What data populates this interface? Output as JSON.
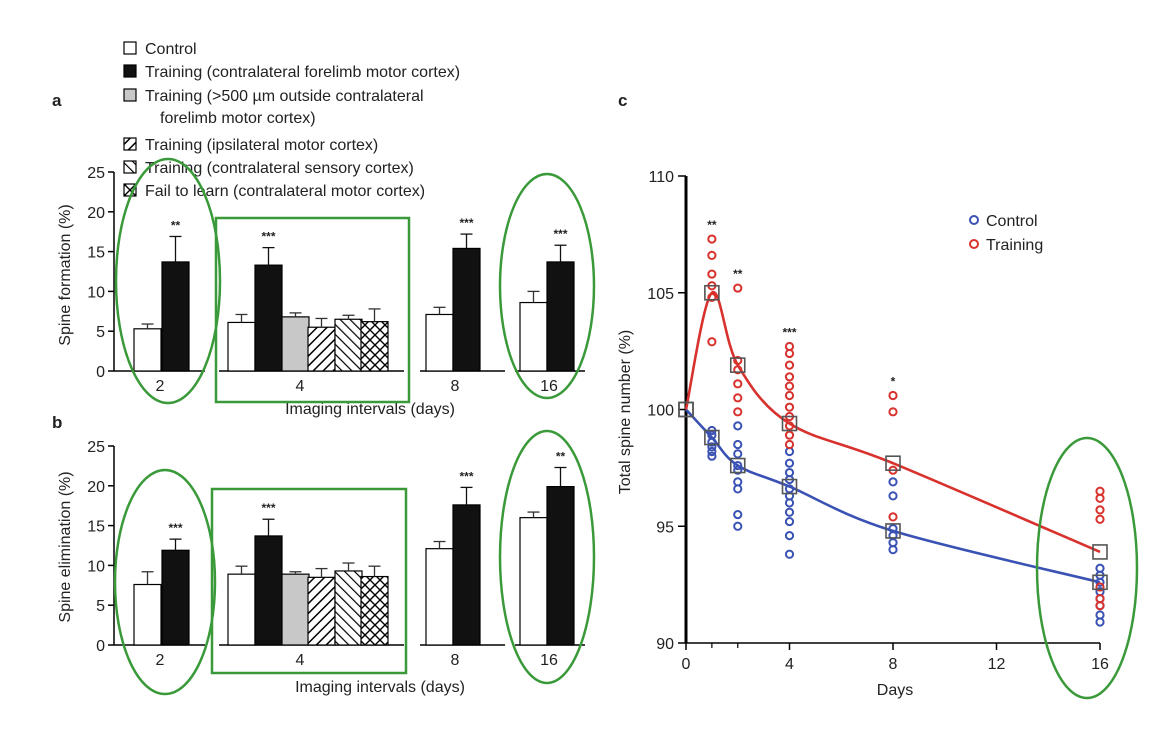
{
  "legend": {
    "items": [
      {
        "label": "Control",
        "pattern": "control"
      },
      {
        "label": "Training (contralateral forelimb motor cortex)",
        "pattern": "training"
      },
      {
        "label": "Training (>500 µm outside contralateral",
        "label2": "forelimb motor cortex)",
        "pattern": "outside"
      },
      {
        "label": "Training (ipsilateral motor cortex)",
        "pattern": "ipsi"
      },
      {
        "label": "Training (contralateral sensory cortex)",
        "pattern": "sensory"
      },
      {
        "label": "Fail to learn (contralateral motor cortex)",
        "pattern": "fail"
      }
    ]
  },
  "chart_data": [
    {
      "panel": "a",
      "type": "bar",
      "xlabel": "Imaging intervals (days)",
      "ylabel": "Spine formation (%)",
      "ylim": [
        0,
        25
      ],
      "yticks": [
        "0",
        "5",
        "10",
        "15",
        "20",
        "25"
      ],
      "groups": [
        {
          "label": "2",
          "bars": [
            {
              "series": "Control",
              "value": 5.3,
              "error": 0.6
            },
            {
              "series": "Training (contralateral forelimb motor cortex)",
              "value": 13.7,
              "error": 3.2,
              "sig": "**"
            }
          ]
        },
        {
          "label": "4",
          "bars": [
            {
              "series": "Control",
              "value": 6.1,
              "error": 1.0
            },
            {
              "series": "Training (contralateral forelimb motor cortex)",
              "value": 13.3,
              "error": 2.2,
              "sig": "***"
            },
            {
              "series": "Training (>500 µm outside contralateral forelimb motor cortex)",
              "value": 6.8,
              "error": 0.5
            },
            {
              "series": "Training (ipsilateral motor cortex)",
              "value": 5.5,
              "error": 1.1
            },
            {
              "series": "Training (contralateral sensory cortex)",
              "value": 6.5,
              "error": 0.5
            },
            {
              "series": "Fail to learn (contralateral motor cortex)",
              "value": 6.2,
              "error": 1.6
            }
          ]
        },
        {
          "label": "8",
          "bars": [
            {
              "series": "Control",
              "value": 7.1,
              "error": 0.9
            },
            {
              "series": "Training (contralateral forelimb motor cortex)",
              "value": 15.4,
              "error": 1.8,
              "sig": "***"
            }
          ]
        },
        {
          "label": "16",
          "bars": [
            {
              "series": "Control",
              "value": 8.6,
              "error": 1.4
            },
            {
              "series": "Training (contralateral forelimb motor cortex)",
              "value": 13.7,
              "error": 2.1,
              "sig": "***"
            }
          ]
        }
      ]
    },
    {
      "panel": "b",
      "type": "bar",
      "xlabel": "Imaging intervals (days)",
      "ylabel": "Spine elimination (%)",
      "ylim": [
        0,
        25
      ],
      "yticks": [
        "0",
        "5",
        "10",
        "15",
        "20",
        "25"
      ],
      "groups": [
        {
          "label": "2",
          "bars": [
            {
              "series": "Control",
              "value": 7.6,
              "error": 1.6
            },
            {
              "series": "Training (contralateral forelimb motor cortex)",
              "value": 11.9,
              "error": 1.4,
              "sig": "***"
            }
          ]
        },
        {
          "label": "4",
          "bars": [
            {
              "series": "Control",
              "value": 8.9,
              "error": 1.0
            },
            {
              "series": "Training (contralateral forelimb motor cortex)",
              "value": 13.7,
              "error": 2.1,
              "sig": "***"
            },
            {
              "series": "Training (>500 µm outside contralateral forelimb motor cortex)",
              "value": 8.9,
              "error": 0.3
            },
            {
              "series": "Training (ipsilateral motor cortex)",
              "value": 8.5,
              "error": 1.1
            },
            {
              "series": "Training (contralateral sensory cortex)",
              "value": 9.3,
              "error": 1.0
            },
            {
              "series": "Fail to learn (contralateral motor cortex)",
              "value": 8.6,
              "error": 1.3
            }
          ]
        },
        {
          "label": "8",
          "bars": [
            {
              "series": "Control",
              "value": 12.1,
              "error": 0.9
            },
            {
              "series": "Training (contralateral forelimb motor cortex)",
              "value": 17.6,
              "error": 2.2,
              "sig": "***"
            }
          ]
        },
        {
          "label": "16",
          "bars": [
            {
              "series": "Control",
              "value": 16.0,
              "error": 0.7
            },
            {
              "series": "Training (contralateral forelimb motor cortex)",
              "value": 19.9,
              "error": 2.4,
              "sig": "**"
            }
          ]
        }
      ]
    },
    {
      "panel": "c",
      "type": "scatter",
      "xlabel": "Days",
      "ylabel": "Total spine number (%)",
      "xlim": [
        0,
        16
      ],
      "ylim": [
        90,
        110
      ],
      "xticks": [
        "0",
        "4",
        "8",
        "12",
        "16"
      ],
      "yticks": [
        "90",
        "95",
        "100",
        "105",
        "110"
      ],
      "legend_position": "top-right",
      "series": [
        {
          "name": "Control",
          "color": "#3a52b4",
          "means": [
            [
              0,
              100
            ],
            [
              1,
              98.8
            ],
            [
              2,
              97.6
            ],
            [
              4,
              96.7
            ],
            [
              8,
              94.8
            ],
            [
              16,
              92.6
            ]
          ],
          "points": [
            [
              1,
              99.1
            ],
            [
              1,
              98.9
            ],
            [
              1,
              98.6
            ],
            [
              1,
              98.4
            ],
            [
              1,
              98.2
            ],
            [
              1,
              98.0
            ],
            [
              2,
              99.3
            ],
            [
              2,
              98.5
            ],
            [
              2,
              98.1
            ],
            [
              2,
              97.6
            ],
            [
              2,
              97.4
            ],
            [
              2,
              96.9
            ],
            [
              2,
              96.6
            ],
            [
              2,
              95.5
            ],
            [
              2,
              95.0
            ],
            [
              4,
              98.2
            ],
            [
              4,
              97.7
            ],
            [
              4,
              97.3
            ],
            [
              4,
              97.0
            ],
            [
              4,
              96.6
            ],
            [
              4,
              96.3
            ],
            [
              4,
              96.0
            ],
            [
              4,
              95.6
            ],
            [
              4,
              95.2
            ],
            [
              4,
              94.6
            ],
            [
              4,
              93.8
            ],
            [
              8,
              96.9
            ],
            [
              8,
              96.3
            ],
            [
              8,
              94.9
            ],
            [
              8,
              94.6
            ],
            [
              8,
              94.3
            ],
            [
              8,
              94.0
            ],
            [
              16,
              93.2
            ],
            [
              16,
              92.9
            ],
            [
              16,
              92.6
            ],
            [
              16,
              92.2
            ],
            [
              16,
              91.9
            ],
            [
              16,
              91.6
            ],
            [
              16,
              91.2
            ],
            [
              16,
              90.9
            ]
          ]
        },
        {
          "name": "Training",
          "color": "#d8322e",
          "means": [
            [
              0,
              100
            ],
            [
              1,
              105.0
            ],
            [
              2,
              101.9
            ],
            [
              4,
              99.4
            ],
            [
              8,
              97.7
            ],
            [
              16,
              93.9
            ]
          ],
          "points": [
            [
              1,
              107.3
            ],
            [
              1,
              106.6
            ],
            [
              1,
              105.8
            ],
            [
              1,
              105.3
            ],
            [
              1,
              104.8
            ],
            [
              1,
              102.9
            ],
            [
              2,
              105.2
            ],
            [
              2,
              102.1
            ],
            [
              2,
              101.7
            ],
            [
              2,
              101.1
            ],
            [
              2,
              100.5
            ],
            [
              2,
              99.9
            ],
            [
              4,
              102.7
            ],
            [
              4,
              102.4
            ],
            [
              4,
              101.9
            ],
            [
              4,
              101.4
            ],
            [
              4,
              101.0
            ],
            [
              4,
              100.6
            ],
            [
              4,
              100.1
            ],
            [
              4,
              99.7
            ],
            [
              4,
              99.3
            ],
            [
              4,
              98.9
            ],
            [
              4,
              98.5
            ],
            [
              8,
              100.6
            ],
            [
              8,
              99.9
            ],
            [
              8,
              97.4
            ],
            [
              8,
              95.4
            ],
            [
              16,
              96.5
            ],
            [
              16,
              96.2
            ],
            [
              16,
              95.7
            ],
            [
              16,
              95.3
            ],
            [
              16,
              92.4
            ],
            [
              16,
              91.9
            ],
            [
              16,
              91.6
            ]
          ]
        }
      ],
      "significance": [
        {
          "day": 1,
          "sig": "**"
        },
        {
          "day": 2,
          "sig": "**"
        },
        {
          "day": 4,
          "sig": "***"
        },
        {
          "day": 8,
          "sig": "*"
        }
      ]
    }
  ],
  "panels": {
    "a": "a",
    "b": "b",
    "c": "c"
  },
  "colors": {
    "highlight": "#3a9a3a",
    "control": "#3a52b4",
    "training": "#d8322e",
    "gray_bar": "#c8c8c8"
  }
}
